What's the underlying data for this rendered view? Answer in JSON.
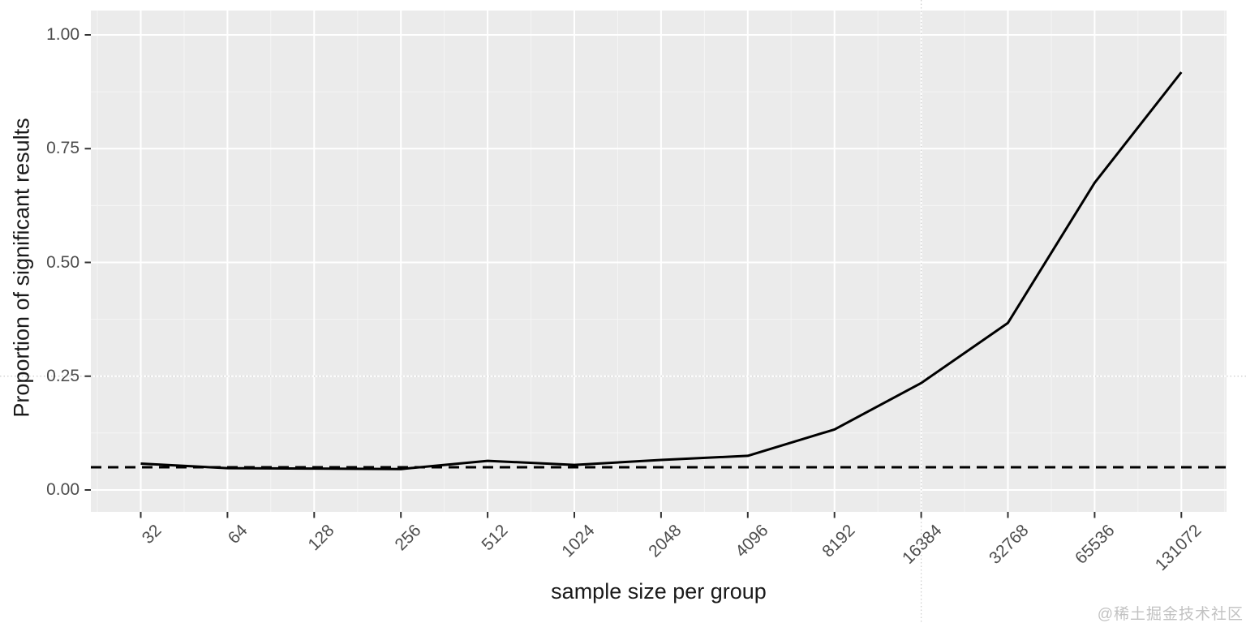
{
  "figure": {
    "watermark": "@稀土掘金技术社区"
  },
  "chart_data": {
    "type": "line",
    "title": "",
    "xlabel": "sample size per group",
    "ylabel": "Proportion of significant results",
    "x_scale": "log2",
    "x": [
      32,
      64,
      128,
      256,
      512,
      1024,
      2048,
      4096,
      8192,
      16384,
      32768,
      65536,
      131072
    ],
    "x_tick_labels": [
      "32",
      "64",
      "128",
      "256",
      "512",
      "1024",
      "2048",
      "4096",
      "8192",
      "16384",
      "32768",
      "65536",
      "131072"
    ],
    "ylim": [
      0,
      1
    ],
    "y_tick_values": [
      0,
      0.25,
      0.5,
      0.75,
      1.0
    ],
    "y_tick_labels": [
      "0.00",
      "0.25",
      "0.50",
      "0.75",
      "1.00"
    ],
    "y_minor_tick_values": [
      0.125,
      0.375,
      0.625,
      0.875
    ],
    "series": [
      {
        "name": "proportion_of_significant_results",
        "style": "solid",
        "values": [
          0.058,
          0.048,
          0.047,
          0.046,
          0.064,
          0.055,
          0.066,
          0.075,
          0.133,
          0.235,
          0.367,
          0.675,
          0.918
        ]
      }
    ],
    "reference_lines": [
      {
        "type": "hline",
        "value": 0.05,
        "style": "dashed",
        "color": "#000000"
      },
      {
        "type": "hline",
        "value": 0.25,
        "style": "dotted-full-bleed",
        "color": "#cccccc"
      },
      {
        "type": "vline",
        "value": 16384,
        "style": "dotted-full-bleed",
        "color": "#cccccc"
      }
    ],
    "legend": "none",
    "grid": "major-and-minor-white-on-gray",
    "colors": {
      "panel_background": "#ebebeb",
      "grid_major": "#ffffff",
      "grid_minor": "#f5f5f5",
      "line": "#000000",
      "dashed_line": "#000000",
      "dotted_line": "#cccccc",
      "tick": "#333333",
      "tick_label": "#4d4d4d",
      "axis_title": "#1a1a1a",
      "watermark": "#c2c2c2"
    }
  }
}
